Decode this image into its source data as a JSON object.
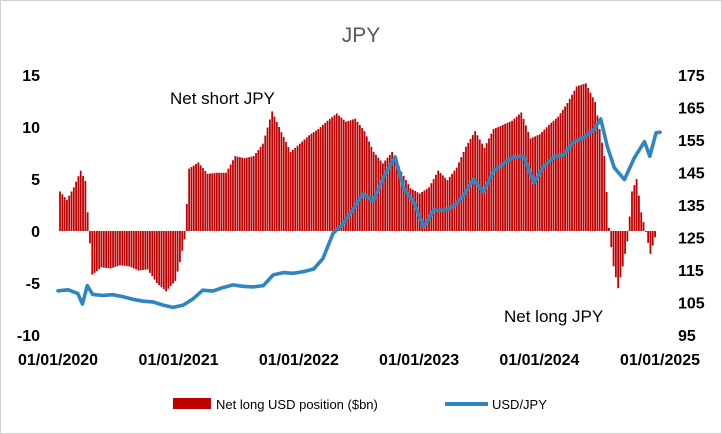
{
  "chart_data": {
    "type": "bar+line",
    "title": "JPY",
    "left_axis": {
      "ylim": [
        -10,
        15
      ],
      "ticks": [
        "-10",
        "-5",
        "0",
        "5",
        "10",
        "15"
      ]
    },
    "right_axis": {
      "ylim": [
        95,
        175
      ],
      "ticks": [
        "95",
        "105",
        "115",
        "125",
        "135",
        "145",
        "155",
        "165",
        "175"
      ]
    },
    "x_axis": {
      "xlim": [
        "2020-01-01",
        "2025-01-01"
      ],
      "ticks": [
        "01/01/2020",
        "01/01/2021",
        "01/01/2022",
        "01/01/2023",
        "01/01/2024",
        "01/01/2025"
      ]
    },
    "annotations": [
      "Net short JPY",
      "Net long JPY"
    ],
    "grid": false,
    "legend_position": "bottom",
    "series": [
      {
        "name": "Net long USD position ($bn)",
        "kind": "bar",
        "axis": "left",
        "color": "#c00000",
        "points": [
          [
            "2020-01-07",
            3.8
          ],
          [
            "2020-01-28",
            3.0
          ],
          [
            "2020-02-18",
            4.2
          ],
          [
            "2020-03-10",
            5.8
          ],
          [
            "2020-03-24",
            4.8
          ],
          [
            "2020-04-14",
            -4.2
          ],
          [
            "2020-05-12",
            -3.5
          ],
          [
            "2020-06-09",
            -3.6
          ],
          [
            "2020-07-07",
            -3.3
          ],
          [
            "2020-08-04",
            -3.4
          ],
          [
            "2020-09-01",
            -3.8
          ],
          [
            "2020-09-29",
            -3.7
          ],
          [
            "2020-10-27",
            -5.0
          ],
          [
            "2020-11-24",
            -5.8
          ],
          [
            "2020-12-22",
            -4.8
          ],
          [
            "2021-01-05",
            -3.0
          ],
          [
            "2021-01-19",
            -0.8
          ],
          [
            "2021-02-02",
            6.0
          ],
          [
            "2021-03-02",
            6.6
          ],
          [
            "2021-03-30",
            5.5
          ],
          [
            "2021-04-27",
            5.6
          ],
          [
            "2021-05-25",
            5.6
          ],
          [
            "2021-06-22",
            7.2
          ],
          [
            "2021-07-20",
            7.0
          ],
          [
            "2021-08-17",
            7.2
          ],
          [
            "2021-09-14",
            8.4
          ],
          [
            "2021-10-12",
            11.5
          ],
          [
            "2021-11-09",
            9.5
          ],
          [
            "2021-12-07",
            7.6
          ],
          [
            "2022-01-04",
            8.4
          ],
          [
            "2022-02-01",
            9.2
          ],
          [
            "2022-03-01",
            9.8
          ],
          [
            "2022-03-29",
            10.6
          ],
          [
            "2022-04-26",
            11.3
          ],
          [
            "2022-05-24",
            10.5
          ],
          [
            "2022-06-21",
            10.8
          ],
          [
            "2022-07-19",
            9.6
          ],
          [
            "2022-08-16",
            7.6
          ],
          [
            "2022-09-13",
            6.5
          ],
          [
            "2022-10-11",
            7.6
          ],
          [
            "2022-11-08",
            5.7
          ],
          [
            "2022-12-06",
            4.1
          ],
          [
            "2023-01-03",
            3.6
          ],
          [
            "2023-01-31",
            4.2
          ],
          [
            "2023-02-28",
            5.8
          ],
          [
            "2023-03-28",
            4.9
          ],
          [
            "2023-04-25",
            6.1
          ],
          [
            "2023-05-23",
            8.1
          ],
          [
            "2023-06-20",
            9.6
          ],
          [
            "2023-07-18",
            8.0
          ],
          [
            "2023-08-15",
            9.8
          ],
          [
            "2023-09-12",
            10.2
          ],
          [
            "2023-10-10",
            10.6
          ],
          [
            "2023-11-07",
            11.4
          ],
          [
            "2023-12-05",
            8.9
          ],
          [
            "2024-01-02",
            9.3
          ],
          [
            "2024-01-30",
            10.2
          ],
          [
            "2024-02-27",
            11.0
          ],
          [
            "2024-03-26",
            12.3
          ],
          [
            "2024-04-23",
            13.9
          ],
          [
            "2024-05-21",
            14.2
          ],
          [
            "2024-06-18",
            12.4
          ],
          [
            "2024-07-16",
            7.2
          ],
          [
            "2024-07-30",
            0.3
          ],
          [
            "2024-08-13",
            -3.4
          ],
          [
            "2024-08-27",
            -5.5
          ],
          [
            "2024-09-10",
            -3.4
          ],
          [
            "2024-09-24",
            -1.0
          ],
          [
            "2024-10-08",
            3.8
          ],
          [
            "2024-10-22",
            5.0
          ],
          [
            "2024-11-05",
            1.8
          ],
          [
            "2024-11-19",
            -0.1
          ],
          [
            "2024-12-03",
            -2.2
          ],
          [
            "2024-12-17",
            -0.6
          ]
        ]
      },
      {
        "name": "USD/JPY",
        "kind": "line",
        "axis": "right",
        "color": "#2e86c1",
        "points": [
          [
            "2020-01-01",
            108.6
          ],
          [
            "2020-02-01",
            108.9
          ],
          [
            "2020-03-01",
            107.8
          ],
          [
            "2020-03-15",
            104.5
          ],
          [
            "2020-03-30",
            110.2
          ],
          [
            "2020-04-15",
            107.5
          ],
          [
            "2020-05-15",
            107.2
          ],
          [
            "2020-06-15",
            107.4
          ],
          [
            "2020-07-15",
            106.8
          ],
          [
            "2020-08-15",
            106.0
          ],
          [
            "2020-09-15",
            105.4
          ],
          [
            "2020-10-15",
            105.2
          ],
          [
            "2020-11-15",
            104.2
          ],
          [
            "2020-12-15",
            103.5
          ],
          [
            "2021-01-15",
            104.2
          ],
          [
            "2021-02-15",
            106.2
          ],
          [
            "2021-03-15",
            108.8
          ],
          [
            "2021-04-15",
            108.5
          ],
          [
            "2021-05-15",
            109.6
          ],
          [
            "2021-06-15",
            110.4
          ],
          [
            "2021-07-15",
            110.0
          ],
          [
            "2021-08-15",
            109.8
          ],
          [
            "2021-09-15",
            110.2
          ],
          [
            "2021-10-15",
            113.5
          ],
          [
            "2021-11-15",
            114.2
          ],
          [
            "2021-12-15",
            114.0
          ],
          [
            "2022-01-15",
            114.5
          ],
          [
            "2022-02-15",
            115.3
          ],
          [
            "2022-03-15",
            118.5
          ],
          [
            "2022-04-15",
            126.3
          ],
          [
            "2022-05-15",
            129.2
          ],
          [
            "2022-06-15",
            133.7
          ],
          [
            "2022-07-15",
            138.4
          ],
          [
            "2022-08-15",
            136.2
          ],
          [
            "2022-09-15",
            143.5
          ],
          [
            "2022-10-20",
            149.8
          ],
          [
            "2022-11-15",
            140.2
          ],
          [
            "2022-12-15",
            136.0
          ],
          [
            "2023-01-15",
            128.3
          ],
          [
            "2023-02-15",
            133.5
          ],
          [
            "2023-03-15",
            133.3
          ],
          [
            "2023-04-15",
            134.5
          ],
          [
            "2023-05-15",
            137.8
          ],
          [
            "2023-06-15",
            143.0
          ],
          [
            "2023-07-15",
            139.0
          ],
          [
            "2023-08-15",
            145.5
          ],
          [
            "2023-09-15",
            147.8
          ],
          [
            "2023-10-15",
            149.8
          ],
          [
            "2023-11-15",
            150.0
          ],
          [
            "2023-12-15",
            141.8
          ],
          [
            "2024-01-15",
            147.0
          ],
          [
            "2024-02-15",
            149.8
          ],
          [
            "2024-03-15",
            150.5
          ],
          [
            "2024-04-15",
            154.5
          ],
          [
            "2024-05-15",
            155.8
          ],
          [
            "2024-06-15",
            158.2
          ],
          [
            "2024-07-05",
            161.5
          ],
          [
            "2024-07-25",
            153.0
          ],
          [
            "2024-08-15",
            146.5
          ],
          [
            "2024-09-15",
            142.8
          ],
          [
            "2024-10-15",
            149.5
          ],
          [
            "2024-11-15",
            154.5
          ],
          [
            "2024-12-01",
            150.0
          ],
          [
            "2024-12-20",
            157.2
          ],
          [
            "2025-01-01",
            157.4
          ]
        ]
      }
    ]
  }
}
